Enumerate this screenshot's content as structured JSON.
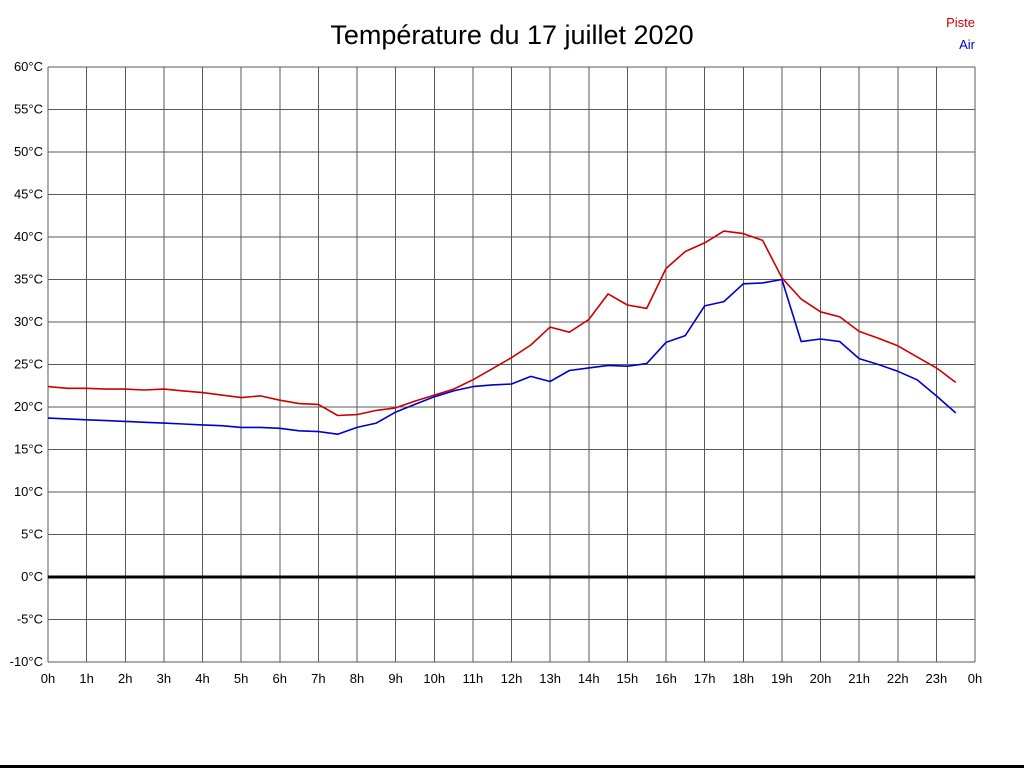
{
  "title": "Température du 17 juillet 2020",
  "legend": {
    "items": [
      {
        "label": "Piste",
        "color": "#cc0000"
      },
      {
        "label": "Air",
        "color": "#0000cc"
      }
    ]
  },
  "chart_data": {
    "type": "line",
    "title": "Température du 17 juillet 2020",
    "xlabel": "",
    "ylabel": "",
    "xlim": [
      0,
      24
    ],
    "ylim": [
      -10,
      60
    ],
    "ytick_step": 5,
    "ytick_suffix": "°C",
    "grid": true,
    "zero_line": true,
    "legend_position": "top-right",
    "xtick_labels": [
      "0h",
      "1h",
      "2h",
      "3h",
      "4h",
      "5h",
      "6h",
      "7h",
      "8h",
      "9h",
      "10h",
      "11h",
      "12h",
      "13h",
      "14h",
      "15h",
      "16h",
      "17h",
      "18h",
      "19h",
      "20h",
      "21h",
      "22h",
      "23h",
      "0h"
    ],
    "x": [
      0,
      0.5,
      1,
      1.5,
      2,
      2.5,
      3,
      3.5,
      4,
      4.5,
      5,
      5.5,
      6,
      6.5,
      7,
      7.5,
      8,
      8.5,
      9,
      9.5,
      10,
      10.5,
      11,
      11.5,
      12,
      12.5,
      13,
      13.5,
      14,
      14.5,
      15,
      15.5,
      16,
      16.5,
      17,
      17.5,
      18,
      18.5,
      19,
      19.5,
      20,
      20.5,
      21,
      21.5,
      22,
      22.5,
      23,
      23.5
    ],
    "series": [
      {
        "name": "Piste",
        "color": "#cc0000",
        "values": [
          22.4,
          22.2,
          22.2,
          22.1,
          22.1,
          22.0,
          22.1,
          21.9,
          21.7,
          21.4,
          21.1,
          21.3,
          20.8,
          20.4,
          20.3,
          19.0,
          19.1,
          19.6,
          19.9,
          20.7,
          21.4,
          22.1,
          23.2,
          24.5,
          25.8,
          27.3,
          29.4,
          28.8,
          30.3,
          33.3,
          32.0,
          31.6,
          36.3,
          38.3,
          39.3,
          40.7,
          40.4,
          39.6,
          35.2,
          32.7,
          31.2,
          30.6,
          28.9,
          28.1,
          27.2,
          25.9,
          24.6,
          22.9
        ]
      },
      {
        "name": "Air",
        "color": "#0000cc",
        "values": [
          18.7,
          18.6,
          18.5,
          18.4,
          18.3,
          18.2,
          18.1,
          18.0,
          17.9,
          17.8,
          17.6,
          17.6,
          17.5,
          17.2,
          17.1,
          16.8,
          17.6,
          18.1,
          19.4,
          20.3,
          21.2,
          21.9,
          22.4,
          22.6,
          22.7,
          23.6,
          23.0,
          24.3,
          24.6,
          24.9,
          24.8,
          25.1,
          27.6,
          28.4,
          31.9,
          32.4,
          34.5,
          34.6,
          35.0,
          27.7,
          28.0,
          27.7,
          25.7,
          25.0,
          24.2,
          23.2,
          21.3,
          19.3
        ]
      }
    ]
  }
}
